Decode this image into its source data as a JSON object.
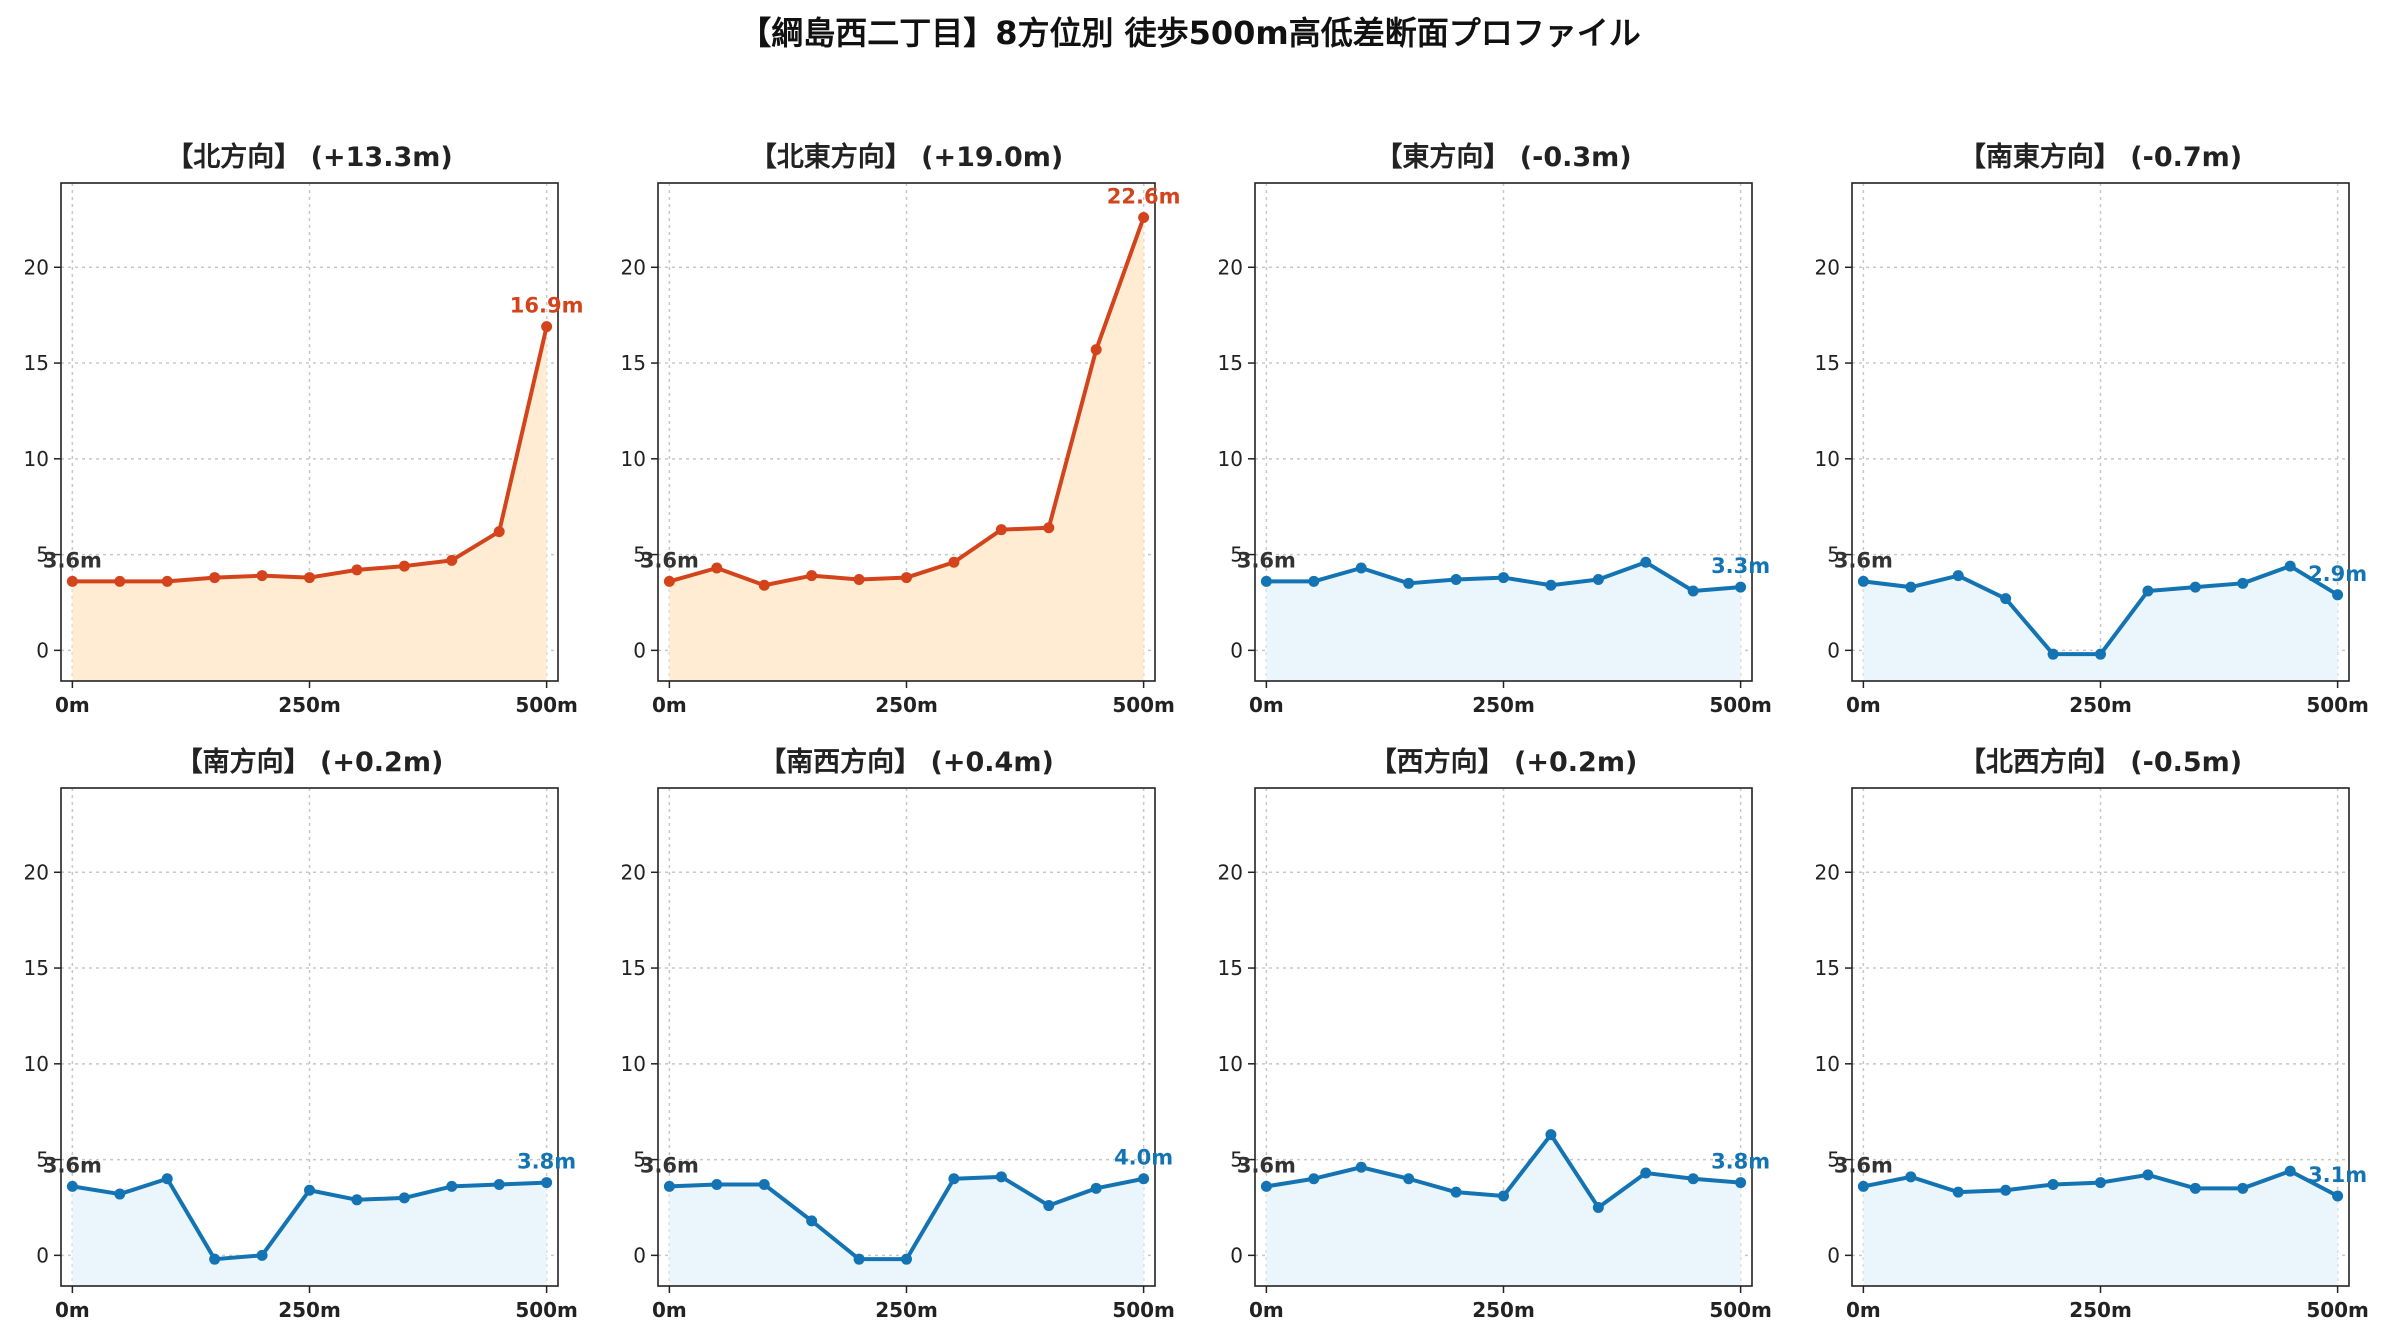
{
  "title": "【綱島西二丁目】8方位別 徒歩500m高低差断面プロファイル",
  "colors": {
    "up_line": "#d4441c",
    "up_fill": "#ffecd2",
    "flat_line": "#1474b3",
    "flat_fill": "#eaf6fc",
    "start_label": "#333333"
  },
  "chart_data": [
    {
      "type": "line",
      "title": "【北方向】 (+13.3m)",
      "trend": "up",
      "x": [
        0,
        50,
        100,
        150,
        200,
        250,
        300,
        350,
        400,
        450,
        500
      ],
      "values": [
        3.6,
        3.6,
        3.6,
        3.8,
        3.9,
        3.8,
        4.2,
        4.4,
        4.7,
        6.2,
        16.9
      ],
      "start_label": "3.6m",
      "end_label": "16.9m",
      "x_ticks": [
        "0m",
        "250m",
        "500m"
      ],
      "y_ticks": [
        "0",
        "5",
        "10",
        "15",
        "20"
      ],
      "ylim": [
        -1.6,
        24.4
      ],
      "xlim": [
        -12,
        512
      ],
      "grid": true
    },
    {
      "type": "line",
      "title": "【北東方向】 (+19.0m)",
      "trend": "up",
      "x": [
        0,
        50,
        100,
        150,
        200,
        250,
        300,
        350,
        400,
        450,
        500
      ],
      "values": [
        3.6,
        4.3,
        3.4,
        3.9,
        3.7,
        3.8,
        4.6,
        6.3,
        6.4,
        15.7,
        22.6
      ],
      "start_label": "3.6m",
      "end_label": "22.6m",
      "x_ticks": [
        "0m",
        "250m",
        "500m"
      ],
      "y_ticks": [
        "0",
        "5",
        "10",
        "15",
        "20"
      ],
      "ylim": [
        -1.6,
        24.4
      ],
      "xlim": [
        -12,
        512
      ],
      "grid": true
    },
    {
      "type": "line",
      "title": "【東方向】 (-0.3m)",
      "trend": "flat",
      "x": [
        0,
        50,
        100,
        150,
        200,
        250,
        300,
        350,
        400,
        450,
        500
      ],
      "values": [
        3.6,
        3.6,
        4.3,
        3.5,
        3.7,
        3.8,
        3.4,
        3.7,
        4.6,
        3.1,
        3.3
      ],
      "start_label": "3.6m",
      "end_label": "3.3m",
      "x_ticks": [
        "0m",
        "250m",
        "500m"
      ],
      "y_ticks": [
        "0",
        "5",
        "10",
        "15",
        "20"
      ],
      "ylim": [
        -1.6,
        24.4
      ],
      "xlim": [
        -12,
        512
      ],
      "grid": true
    },
    {
      "type": "line",
      "title": "【南東方向】 (-0.7m)",
      "trend": "flat",
      "x": [
        0,
        50,
        100,
        150,
        200,
        250,
        300,
        350,
        400,
        450,
        500
      ],
      "values": [
        3.6,
        3.3,
        3.9,
        2.7,
        -0.2,
        -0.2,
        3.1,
        3.3,
        3.5,
        4.4,
        2.9
      ],
      "start_label": "3.6m",
      "end_label": "2.9m",
      "x_ticks": [
        "0m",
        "250m",
        "500m"
      ],
      "y_ticks": [
        "0",
        "5",
        "10",
        "15",
        "20"
      ],
      "ylim": [
        -1.6,
        24.4
      ],
      "xlim": [
        -12,
        512
      ],
      "grid": true
    },
    {
      "type": "line",
      "title": "【南方向】 (+0.2m)",
      "trend": "flat",
      "x": [
        0,
        50,
        100,
        150,
        200,
        250,
        300,
        350,
        400,
        450,
        500
      ],
      "values": [
        3.6,
        3.2,
        4.0,
        -0.2,
        0.0,
        3.4,
        2.9,
        3.0,
        3.6,
        3.7,
        3.8
      ],
      "start_label": "3.6m",
      "end_label": "3.8m",
      "x_ticks": [
        "0m",
        "250m",
        "500m"
      ],
      "y_ticks": [
        "0",
        "5",
        "10",
        "15",
        "20"
      ],
      "ylim": [
        -1.6,
        24.4
      ],
      "xlim": [
        -12,
        512
      ],
      "grid": true
    },
    {
      "type": "line",
      "title": "【南西方向】 (+0.4m)",
      "trend": "flat",
      "x": [
        0,
        50,
        100,
        150,
        200,
        250,
        300,
        350,
        400,
        450,
        500
      ],
      "values": [
        3.6,
        3.7,
        3.7,
        1.8,
        -0.2,
        -0.2,
        4.0,
        4.1,
        2.6,
        3.5,
        4.0
      ],
      "start_label": "3.6m",
      "end_label": "4.0m",
      "x_ticks": [
        "0m",
        "250m",
        "500m"
      ],
      "y_ticks": [
        "0",
        "5",
        "10",
        "15",
        "20"
      ],
      "ylim": [
        -1.6,
        24.4
      ],
      "xlim": [
        -12,
        512
      ],
      "grid": true
    },
    {
      "type": "line",
      "title": "【西方向】 (+0.2m)",
      "trend": "flat",
      "x": [
        0,
        50,
        100,
        150,
        200,
        250,
        300,
        350,
        400,
        450,
        500
      ],
      "values": [
        3.6,
        4.0,
        4.6,
        4.0,
        3.3,
        3.1,
        6.3,
        2.5,
        4.3,
        4.0,
        3.8
      ],
      "start_label": "3.6m",
      "end_label": "3.8m",
      "x_ticks": [
        "0m",
        "250m",
        "500m"
      ],
      "y_ticks": [
        "0",
        "5",
        "10",
        "15",
        "20"
      ],
      "ylim": [
        -1.6,
        24.4
      ],
      "xlim": [
        -12,
        512
      ],
      "grid": true
    },
    {
      "type": "line",
      "title": "【北西方向】 (-0.5m)",
      "trend": "flat",
      "x": [
        0,
        50,
        100,
        150,
        200,
        250,
        300,
        350,
        400,
        450,
        500
      ],
      "values": [
        3.6,
        4.1,
        3.3,
        3.4,
        3.7,
        3.8,
        4.2,
        3.5,
        3.5,
        4.4,
        3.1
      ],
      "start_label": "3.6m",
      "end_label": "3.1m",
      "x_ticks": [
        "0m",
        "250m",
        "500m"
      ],
      "y_ticks": [
        "0",
        "5",
        "10",
        "15",
        "20"
      ],
      "ylim": [
        -1.6,
        24.4
      ],
      "xlim": [
        -12,
        512
      ],
      "grid": true
    }
  ]
}
